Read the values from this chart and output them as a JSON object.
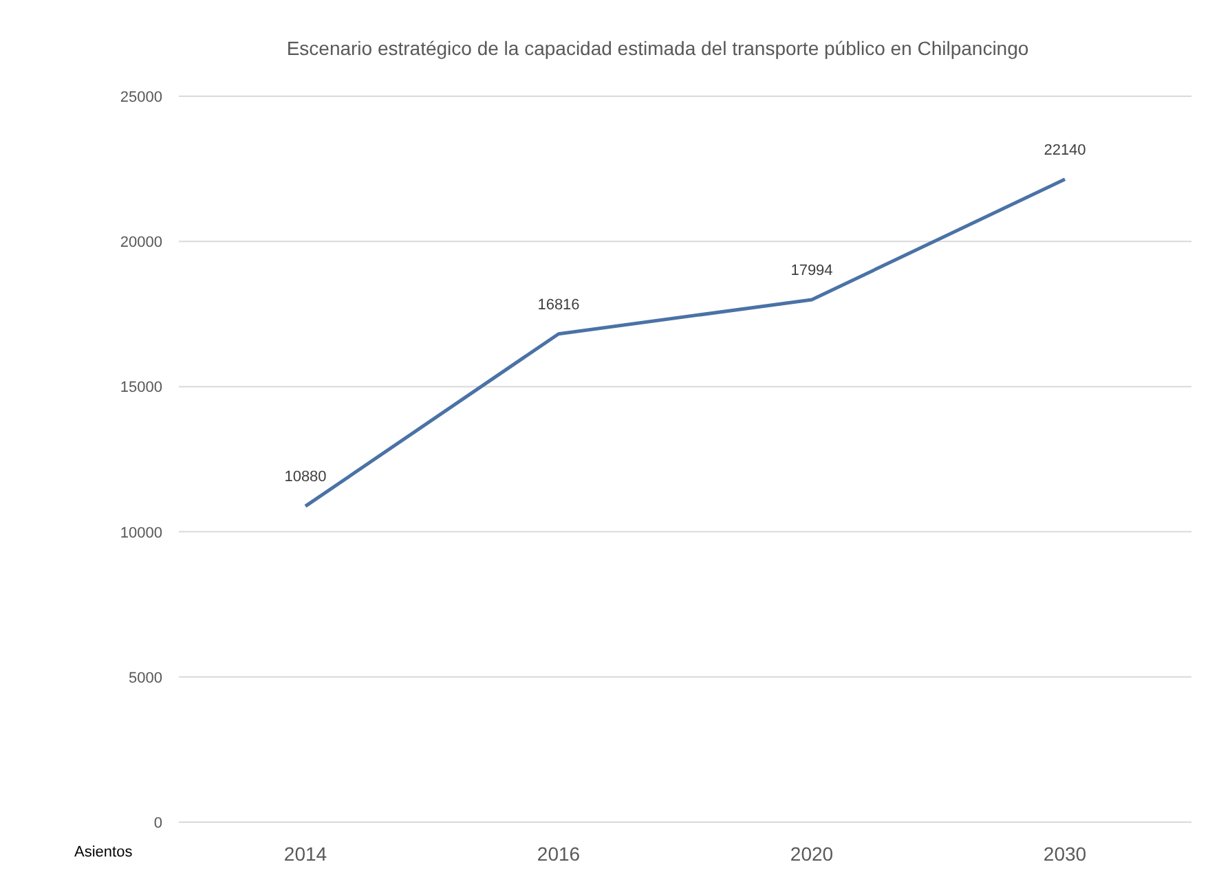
{
  "chart_data": {
    "type": "line",
    "title": "Escenario estratégico de la capacidad estimada del transporte público en Chilpancingo",
    "categories": [
      "2014",
      "2016",
      "2020",
      "2030"
    ],
    "series": [
      {
        "color": "#4a72a6",
        "values": [
          10880,
          16816,
          17994,
          22140
        ]
      }
    ],
    "ylim": [
      0,
      25000
    ],
    "yticks": [
      0,
      5000,
      10000,
      15000,
      20000,
      25000
    ],
    "grid": "y",
    "data_labels": true,
    "marker": "none",
    "line_style": "solid",
    "annotations": [
      "Asientos"
    ]
  }
}
